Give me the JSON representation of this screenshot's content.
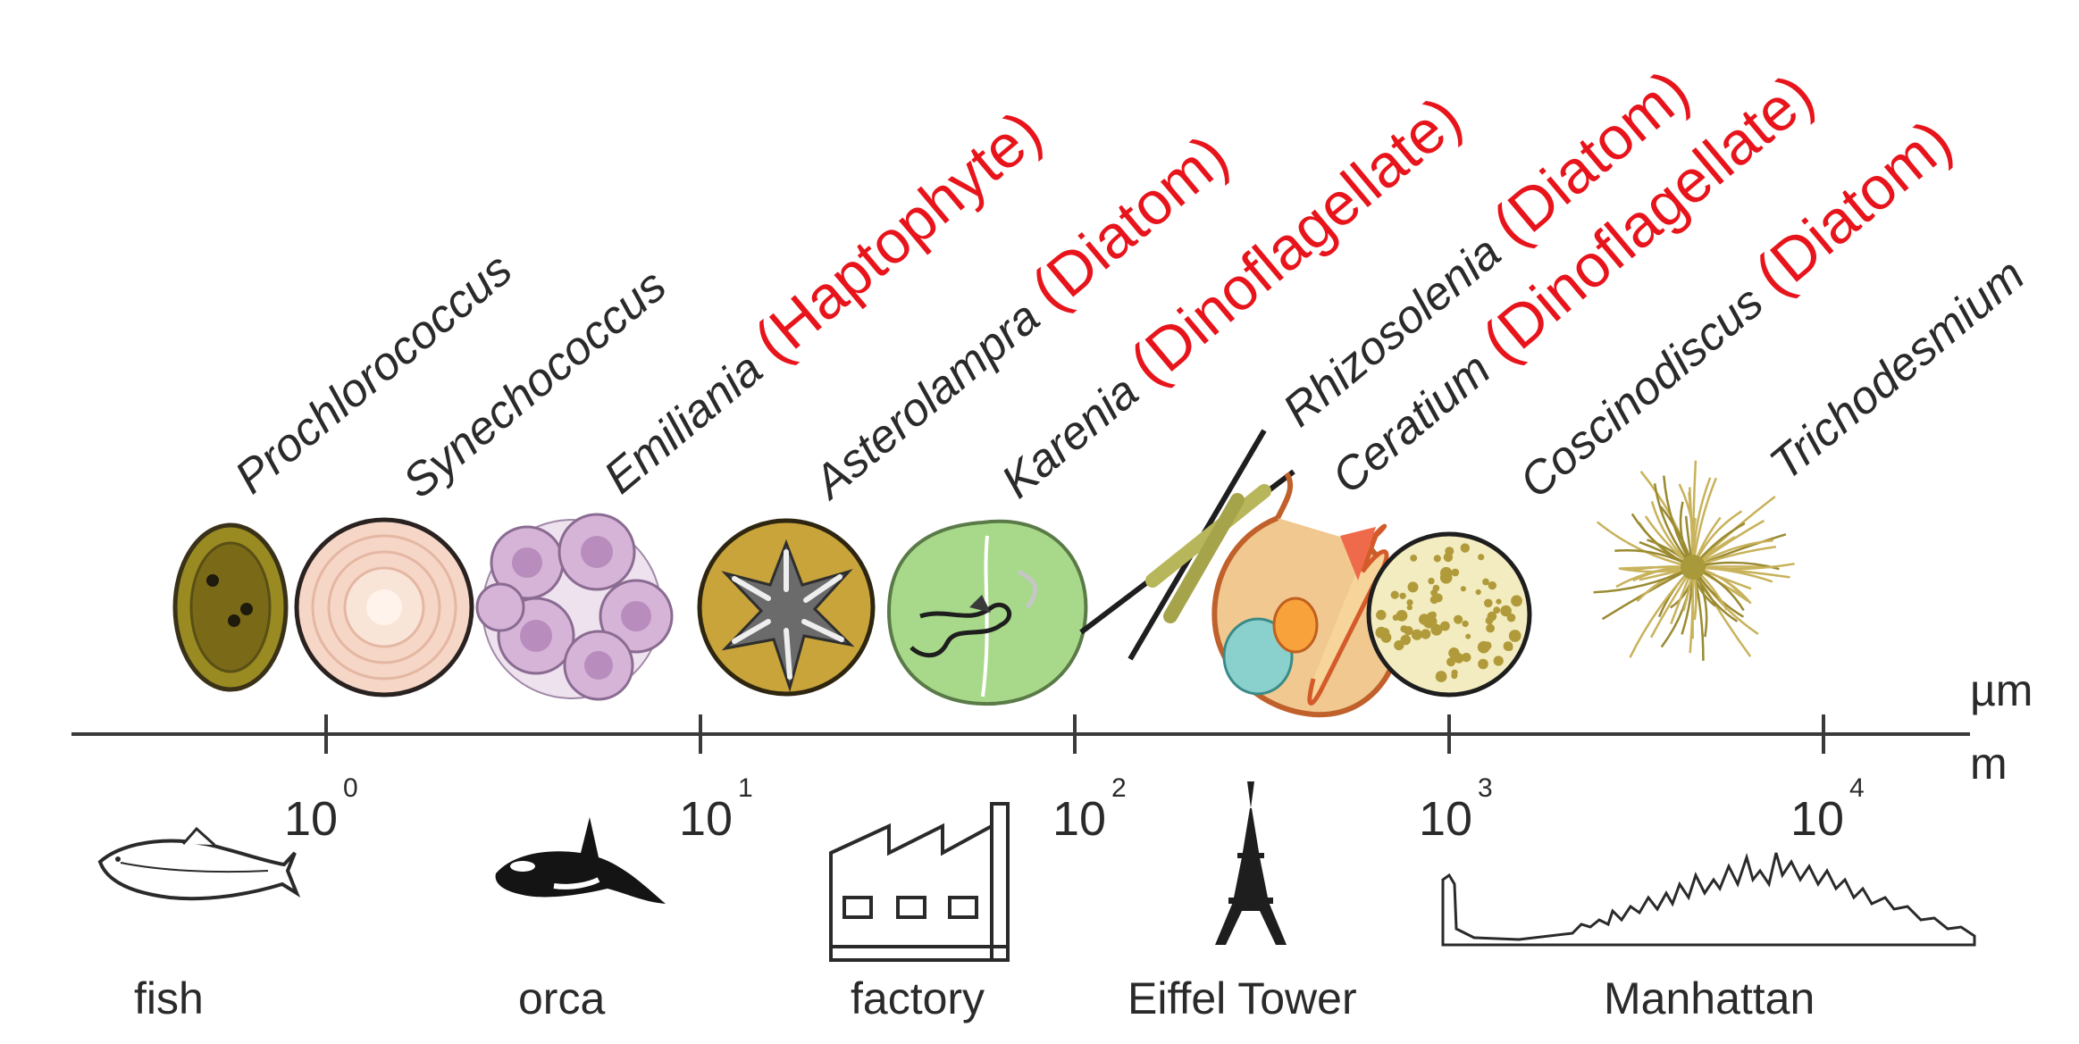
{
  "organisms": [
    {
      "name": "Prochlorococcus",
      "group": ""
    },
    {
      "name": "Synechococcus",
      "group": ""
    },
    {
      "name": "Emiliania",
      "group": "(Haptophyte)"
    },
    {
      "name": "Asterolampra",
      "group": "(Diatom)"
    },
    {
      "name": "Karenia",
      "group": "(Dinoflagellate)"
    },
    {
      "name": "Rhizosolenia",
      "group": "(Diatom)"
    },
    {
      "name": "Ceratium",
      "group": "(Dinoflagellate)"
    },
    {
      "name": "Coscinodiscus",
      "group": "(Diatom)"
    },
    {
      "name": "Trichodesmium",
      "group": ""
    }
  ],
  "axis": {
    "unit_top": "µm",
    "unit_bottom": "m",
    "ticks": [
      {
        "base": "10",
        "exp": "0"
      },
      {
        "base": "10",
        "exp": "1"
      },
      {
        "base": "10",
        "exp": "2"
      },
      {
        "base": "10",
        "exp": "3"
      },
      {
        "base": "10",
        "exp": "4"
      }
    ]
  },
  "objects": [
    {
      "label": "fish"
    },
    {
      "label": "orca"
    },
    {
      "label": "factory"
    },
    {
      "label": "Eiffel Tower"
    },
    {
      "label": "Manhattan"
    }
  ],
  "colors": {
    "group_text": "#e8141b",
    "axis": "#3a3a3a",
    "prochloro_fill": "#8a7a1e",
    "synecho_fill": "#f6d6c6",
    "emiliania_fill": "#d9b8d8",
    "asterolampra_fill": "#c9a43a",
    "karenia_fill": "#a8d98a",
    "coscino_fill": "#f3ecc0",
    "tricho_stroke": "#c8b25a"
  }
}
